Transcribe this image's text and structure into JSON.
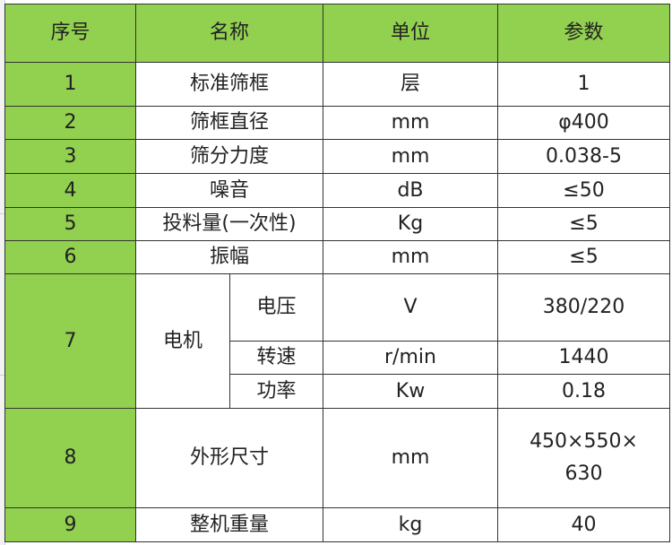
{
  "header": {
    "no": "序号",
    "name": "名称",
    "unit": "单位",
    "param": "参数"
  },
  "rows": [
    {
      "no": "1",
      "name": "标准筛框",
      "unit": "层",
      "param": "1"
    },
    {
      "no": "2",
      "name": "筛框直径",
      "unit": "mm",
      "param": "φ400"
    },
    {
      "no": "3",
      "name": "筛分力度",
      "unit": "mm",
      "param": "0.038-5"
    },
    {
      "no": "4",
      "name": "噪音",
      "unit": "dB",
      "param": "≤50"
    },
    {
      "no": "5",
      "name": "投料量(一次性)",
      "unit": "Kg",
      "param": "≤5"
    },
    {
      "no": "6",
      "name": "振幅",
      "unit": "mm",
      "param": "≤5"
    },
    {
      "no": "7",
      "name": "电机",
      "sub": [
        {
          "name": "电压",
          "unit": "V",
          "param": "380/220"
        },
        {
          "name": "转速",
          "unit": "r/min",
          "param": "1440"
        },
        {
          "name": "功率",
          "unit": "Kw",
          "param": "0.18"
        }
      ]
    },
    {
      "no": "8",
      "name": "外形尺寸",
      "unit": "mm",
      "param": "450×550×\n630"
    },
    {
      "no": "9",
      "name": "整机重量",
      "unit": "kg",
      "param": "40"
    }
  ],
  "colors": {
    "header_bg": "#92D050",
    "border": "#333333"
  }
}
